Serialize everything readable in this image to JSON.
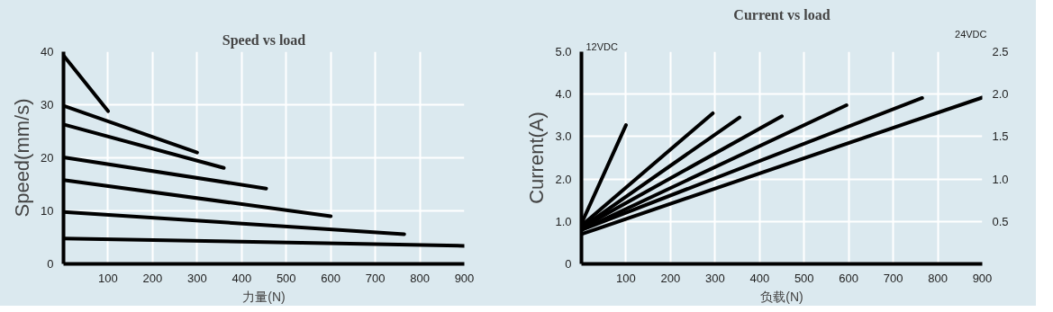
{
  "chart_data": [
    {
      "type": "line",
      "title": "Speed vs load",
      "xlabel": "力量(N)",
      "ylabel": "Speed(mm/s)",
      "xlim": [
        0,
        900
      ],
      "xticks": [
        100,
        200,
        300,
        400,
        500,
        600,
        700,
        800,
        900
      ],
      "ylim": [
        0,
        40
      ],
      "yticks": [
        0,
        10,
        20,
        30,
        40
      ],
      "grid": true,
      "series": [
        {
          "color": "#000000",
          "x": [
            0,
            100
          ],
          "values": [
            39.3,
            28.8
          ]
        },
        {
          "color": "#000000",
          "x": [
            0,
            300
          ],
          "values": [
            29.8,
            21.0
          ]
        },
        {
          "color": "#000000",
          "x": [
            0,
            360
          ],
          "values": [
            26.3,
            18.1
          ]
        },
        {
          "color": "#000000",
          "x": [
            0,
            455
          ],
          "values": [
            20.1,
            14.2
          ]
        },
        {
          "color": "#000000",
          "x": [
            0,
            600
          ],
          "values": [
            15.8,
            9.0
          ]
        },
        {
          "color": "#000000",
          "x": [
            0,
            765
          ],
          "values": [
            9.8,
            5.6
          ]
        },
        {
          "color": "#000000",
          "x": [
            0,
            900
          ],
          "values": [
            4.8,
            3.4
          ]
        }
      ]
    },
    {
      "type": "line",
      "title": "Current vs load",
      "xlabel": "负载(N)",
      "ylabel": "Current(A)",
      "annotations": [
        "12VDC",
        "24VDC"
      ],
      "xlim": [
        0,
        900
      ],
      "xticks": [
        100,
        200,
        300,
        400,
        500,
        600,
        700,
        800,
        900
      ],
      "ylim": [
        0,
        5
      ],
      "yticks": [
        0,
        {
          "value": 1,
          "label": "1.0"
        },
        {
          "value": 2,
          "label": "2.0"
        },
        {
          "value": 3,
          "label": "3.0"
        },
        {
          "value": 4,
          "label": "4.0"
        },
        {
          "value": 5,
          "label": "5.0"
        }
      ],
      "y2lim": [
        0,
        2.5
      ],
      "y2ticks": [
        0.5,
        {
          "value": 1,
          "label": "1.0"
        },
        1.5,
        {
          "value": 2,
          "label": "2.0"
        },
        2.5
      ],
      "grid": true,
      "series": [
        {
          "color": "#000000",
          "x": [
            0,
            100
          ],
          "values": [
            0.95,
            3.27
          ]
        },
        {
          "color": "#000000",
          "x": [
            0,
            295
          ],
          "values": [
            0.9,
            3.55
          ]
        },
        {
          "color": "#000000",
          "x": [
            0,
            355
          ],
          "values": [
            0.85,
            3.45
          ]
        },
        {
          "color": "#000000",
          "x": [
            0,
            450
          ],
          "values": [
            0.85,
            3.48
          ]
        },
        {
          "color": "#000000",
          "x": [
            0,
            595
          ],
          "values": [
            0.8,
            3.74
          ]
        },
        {
          "color": "#000000",
          "x": [
            0,
            765
          ],
          "values": [
            0.8,
            3.91
          ]
        },
        {
          "color": "#000000",
          "x": [
            0,
            900
          ],
          "values": [
            0.7,
            3.92
          ]
        }
      ]
    }
  ]
}
